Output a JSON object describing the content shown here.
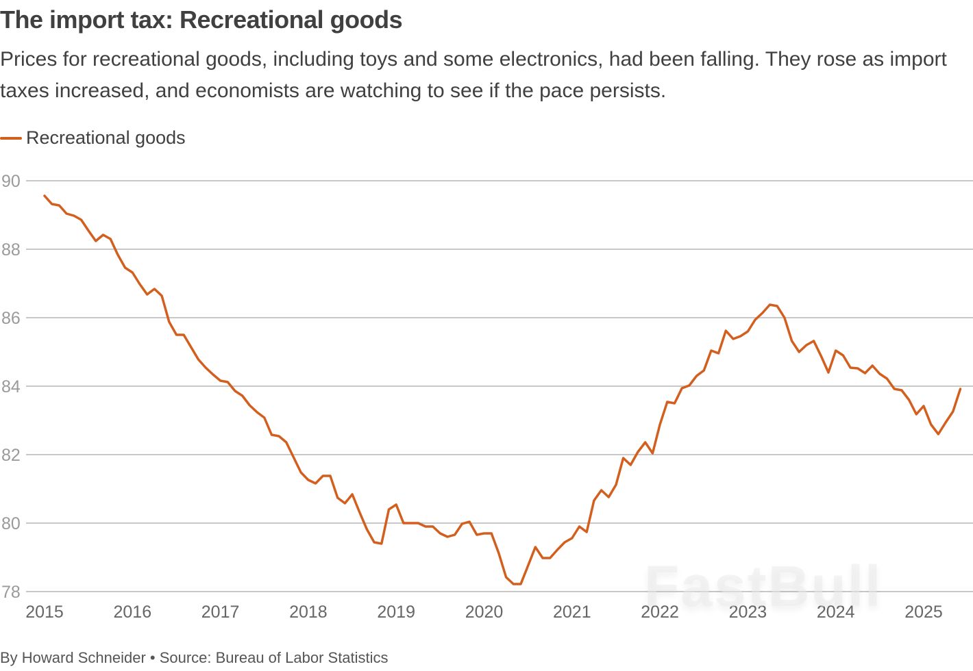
{
  "header": {
    "title": "The import tax: Recreational goods",
    "subtitle": "Prices for recreational goods, including toys and some electronics, had been falling. They rose as import taxes increased, and economists are watching to see if the pace persists."
  },
  "footer": {
    "credit": "By Howard Schneider • Source: Bureau of Labor Statistics"
  },
  "watermark": "FastBull",
  "colors": {
    "series": "#d35f1e",
    "grid": "#c8c8c8",
    "text": "#404040"
  },
  "chart_data": {
    "type": "line",
    "title": "The import tax: Recreational goods",
    "xlabel": "",
    "ylabel": "",
    "ylim": [
      78,
      90
    ],
    "xlim": [
      2015,
      2025.6
    ],
    "grid": true,
    "legend_position": "top-left",
    "yticks": [
      90,
      88,
      86,
      84,
      82,
      80,
      78
    ],
    "xticks": [
      "2015",
      "2016",
      "2017",
      "2018",
      "2019",
      "2020",
      "2021",
      "2022",
      "2023",
      "2024",
      "2025"
    ],
    "x_start": "2015-01",
    "x_frequency": "monthly",
    "series": [
      {
        "name": "Recreational goods",
        "color": "#d35f1e",
        "values": [
          89.56,
          89.32,
          89.28,
          89.04,
          88.98,
          88.86,
          88.54,
          88.24,
          88.42,
          88.3,
          87.84,
          87.46,
          87.32,
          86.98,
          86.68,
          86.84,
          86.64,
          85.88,
          85.5,
          85.5,
          85.14,
          84.78,
          84.54,
          84.34,
          84.16,
          84.12,
          83.86,
          83.72,
          83.44,
          83.24,
          83.08,
          82.58,
          82.54,
          82.36,
          81.92,
          81.48,
          81.26,
          81.16,
          81.38,
          81.38,
          80.74,
          80.58,
          80.84,
          80.32,
          79.82,
          79.44,
          79.4,
          80.4,
          80.54,
          80.0,
          80.0,
          80.0,
          79.9,
          79.9,
          79.7,
          79.6,
          79.66,
          79.98,
          80.04,
          79.66,
          79.7,
          79.7,
          79.12,
          78.42,
          78.22,
          78.22,
          78.76,
          79.3,
          78.98,
          78.98,
          79.22,
          79.44,
          79.56,
          79.9,
          79.74,
          80.66,
          80.96,
          80.76,
          81.12,
          81.9,
          81.7,
          82.08,
          82.36,
          82.04,
          82.88,
          83.54,
          83.5,
          83.94,
          84.02,
          84.3,
          84.46,
          85.04,
          84.96,
          85.62,
          85.38,
          85.46,
          85.6,
          85.94,
          86.14,
          86.38,
          86.34,
          86.0,
          85.32,
          85.0,
          85.2,
          85.32,
          84.88,
          84.4,
          85.04,
          84.9,
          84.54,
          84.52,
          84.38,
          84.6,
          84.36,
          84.22,
          83.92,
          83.88,
          83.6,
          83.18,
          83.42,
          82.88,
          82.6,
          82.94,
          83.26,
          83.92
        ]
      }
    ]
  }
}
